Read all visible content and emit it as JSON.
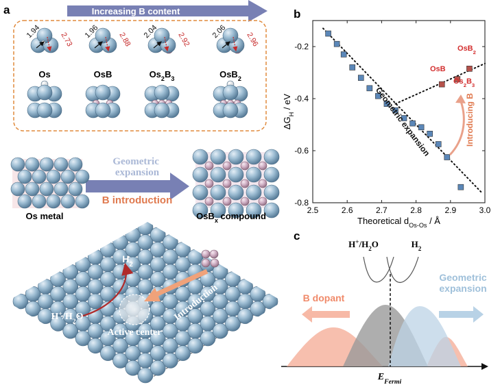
{
  "panel_a": {
    "label": "a",
    "arrow_text": "Increasing B content",
    "structures": [
      {
        "name_parts": [
          [
            "Os",
            false
          ]
        ],
        "d_short": "1.94",
        "d_long": "2.73"
      },
      {
        "name_parts": [
          [
            "OsB",
            false
          ]
        ],
        "d_short": "1.96",
        "d_long": "2.88"
      },
      {
        "name_parts": [
          [
            "Os",
            false
          ],
          [
            "2",
            true
          ],
          [
            "B",
            false
          ],
          [
            "3",
            true
          ]
        ],
        "d_short": "2.04",
        "d_long": "2.92"
      },
      {
        "name_parts": [
          [
            "OsB",
            false
          ],
          [
            "2",
            true
          ]
        ],
        "d_short": "2.06",
        "d_long": "2.96"
      }
    ],
    "geometric_expansion": "Geometric\nexpansion",
    "b_introduction": "B introduction",
    "os_metal": "Os metal",
    "osbx_parts": [
      [
        "OsB",
        false
      ],
      [
        "x",
        true
      ],
      [
        " compound",
        false
      ]
    ],
    "h2_parts": [
      [
        "H",
        false
      ],
      [
        "2",
        true
      ]
    ],
    "h_h2o_parts": [
      [
        "H",
        false
      ],
      [
        "+",
        "sup"
      ],
      [
        "/H",
        false
      ],
      [
        "2",
        true
      ],
      [
        "O",
        false
      ]
    ],
    "introduction": "Introduction",
    "active_center": "Active center"
  },
  "panel_b": {
    "label": "b"
  },
  "panel_c": {
    "label": "c",
    "h_h2o_parts": [
      [
        "H",
        false
      ],
      [
        "+",
        "sup"
      ],
      [
        "/H",
        false
      ],
      [
        "2",
        true
      ],
      [
        "O",
        false
      ]
    ],
    "h2_parts": [
      [
        "H",
        false
      ],
      [
        "2",
        true
      ]
    ],
    "b_dopant": "B dopant",
    "geometric_expansion": "Geometric\nexpansion",
    "efermi_parts": [
      [
        "E",
        false
      ],
      [
        "Fermi",
        true
      ]
    ]
  },
  "chart_data": {
    "type": "scatter",
    "xlabel_parts": [
      [
        "Theoretical d",
        false
      ],
      [
        "Os-Os",
        true
      ],
      [
        " / Å",
        false
      ]
    ],
    "ylabel_parts": [
      [
        "ΔG",
        false
      ],
      [
        "H",
        true
      ],
      [
        " / eV",
        false
      ]
    ],
    "xlim": [
      2.5,
      3.0
    ],
    "ylim": [
      -0.8,
      -0.1
    ],
    "xticks": [
      "2.5",
      "2.6",
      "2.7",
      "2.8",
      "2.9",
      "3.0"
    ],
    "yticks": [
      "-0.2",
      "-0.4",
      "-0.6",
      "-0.8"
    ],
    "series": [
      {
        "color": "#5b87b8",
        "x": [
          2.545,
          2.57,
          2.59,
          2.615,
          2.64,
          2.665,
          2.69,
          2.715,
          2.74,
          2.765,
          2.79,
          2.815,
          2.84,
          2.865,
          2.89,
          2.93
        ],
        "y": [
          -0.15,
          -0.19,
          -0.23,
          -0.28,
          -0.32,
          -0.36,
          -0.39,
          -0.42,
          -0.445,
          -0.475,
          -0.495,
          -0.51,
          -0.535,
          -0.575,
          -0.625,
          -0.74
        ]
      },
      {
        "color": "#b5524b",
        "x": [
          2.875,
          2.92,
          2.955
        ],
        "y": [
          -0.345,
          -0.325,
          -0.285
        ]
      }
    ],
    "trend_lines": [
      {
        "x": [
          2.53,
          2.99
        ],
        "y": [
          -0.13,
          -0.76
        ]
      },
      {
        "x": [
          2.74,
          3.0
        ],
        "y": [
          -0.42,
          -0.265
        ]
      }
    ],
    "annotations": {
      "osb": [
        [
          "OsB",
          false
        ]
      ],
      "osb2": [
        [
          "OsB",
          false
        ],
        [
          "2",
          true
        ]
      ],
      "os2b3": [
        [
          "Os",
          false
        ],
        [
          "2",
          true
        ],
        [
          "B",
          false
        ],
        [
          "3",
          true
        ]
      ],
      "geometric_expansion": "Geometric expansion",
      "introducing_b": "Introducing B"
    }
  },
  "colors": {
    "os_atom": "#8fb0c8",
    "b_atom": "#c9a8bc",
    "arrow_purple": "#7880b4",
    "dashed_orange": "#e08a3c",
    "b_text": "#e07a4f",
    "geo_text": "#aab8d6",
    "red_label": "#d32f2f"
  }
}
